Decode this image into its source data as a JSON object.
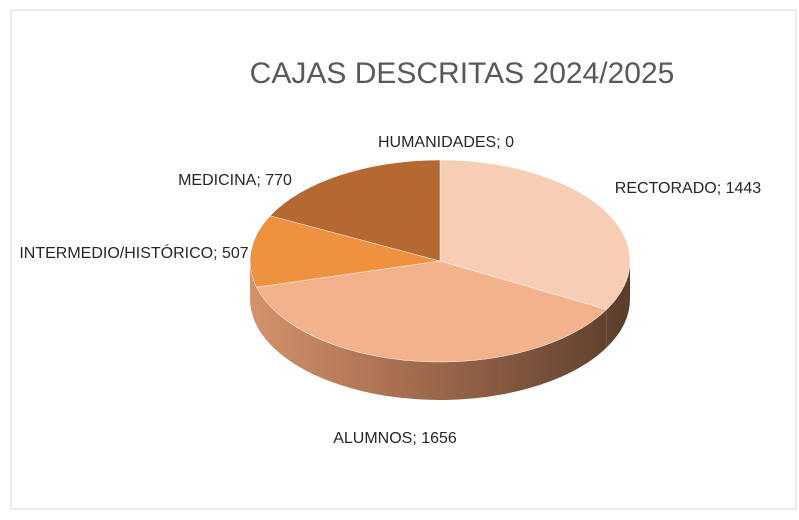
{
  "chart_data": {
    "type": "pie3d",
    "title": "CAJAS DESCRITAS 2024/2025",
    "categories": [
      "RECTORADO",
      "ALUMNOS",
      "INTERMEDIO/HISTÓRICO",
      "MEDICINA",
      "HUMANIDADES"
    ],
    "values": [
      1443,
      1656,
      507,
      770,
      0
    ],
    "value_labels": [
      "RECTORADO; 1443",
      "ALUMNOS; 1656",
      "INTERMEDIO/HISTÓRICO; 507",
      "MEDICINA; 770",
      "HUMANIDADES; 0"
    ],
    "colors": [
      "#f8cdb5",
      "#f4b28c",
      "#f0913f",
      "#b5682f",
      "#8a4a1f"
    ]
  }
}
